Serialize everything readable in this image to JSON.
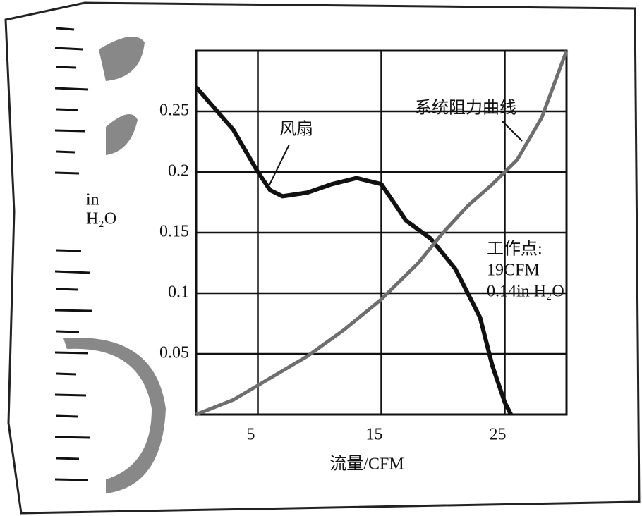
{
  "chart_data": {
    "type": "line",
    "y_label": [
      "in",
      "H₂O"
    ],
    "x_label": "流量/CFM",
    "xlim": [
      0,
      30
    ],
    "xticks": [
      5,
      15,
      25
    ],
    "ylim": [
      0,
      0.3
    ],
    "yticks": [
      0.05,
      0.1,
      0.15,
      0.2,
      0.25
    ],
    "grid": true,
    "series": [
      {
        "name": "风扇",
        "color": "#111111",
        "x": [
          0,
          3,
          5,
          6,
          7,
          9,
          11,
          13,
          15,
          16,
          17,
          19,
          21,
          23,
          24,
          25,
          25.5
        ],
        "values": [
          0.27,
          0.235,
          0.2,
          0.185,
          0.18,
          0.183,
          0.19,
          0.195,
          0.19,
          0.175,
          0.16,
          0.145,
          0.12,
          0.08,
          0.04,
          0.01,
          0
        ]
      },
      {
        "name": "系统阻力曲线",
        "color": "#6e6e6e",
        "x": [
          0,
          3,
          6,
          9,
          12,
          15,
          18,
          20,
          22,
          24,
          26,
          28,
          30
        ],
        "values": [
          0,
          0.012,
          0.03,
          0.048,
          0.07,
          0.095,
          0.125,
          0.15,
          0.172,
          0.19,
          0.21,
          0.245,
          0.3
        ]
      }
    ],
    "annotation": [
      "工作点:",
      "19CFM",
      "0.14in H₂O"
    ]
  }
}
